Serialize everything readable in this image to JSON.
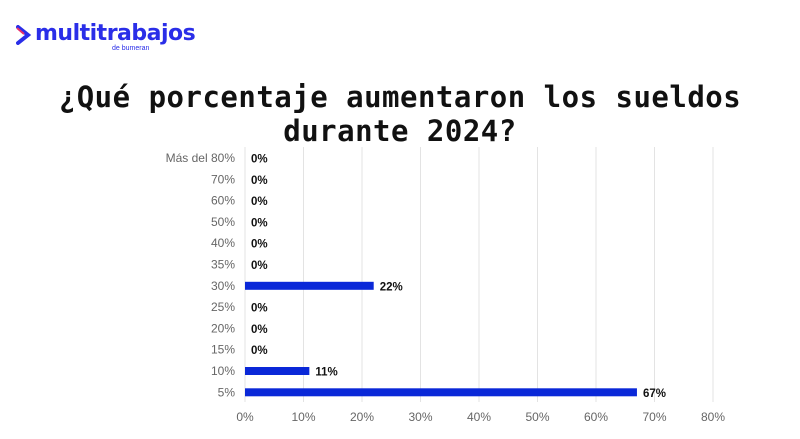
{
  "logo": {
    "name": "multitrabajos",
    "sub": "de bumeran",
    "color": "#2a2ee8"
  },
  "chart_data": {
    "type": "bar",
    "orientation": "horizontal",
    "title": "¿Qué porcentaje aumentaron los sueldos durante 2024?",
    "categories": [
      "Más del 80%",
      "70%",
      "60%",
      "50%",
      "40%",
      "35%",
      "30%",
      "25%",
      "20%",
      "15%",
      "10%",
      "5%"
    ],
    "values": [
      0,
      0,
      0,
      0,
      0,
      0,
      22,
      0,
      0,
      0,
      11,
      67
    ],
    "data_labels": [
      "0%",
      "0%",
      "0%",
      "0%",
      "0%",
      "0%",
      "22%",
      "0%",
      "0%",
      "0%",
      "11%",
      "67%"
    ],
    "xlim": [
      0,
      80
    ],
    "xticks": [
      "0%",
      "10%",
      "20%",
      "30%",
      "40%",
      "50%",
      "60%",
      "70%",
      "80%"
    ],
    "grid": true,
    "bar_color": "#0a28d8"
  }
}
